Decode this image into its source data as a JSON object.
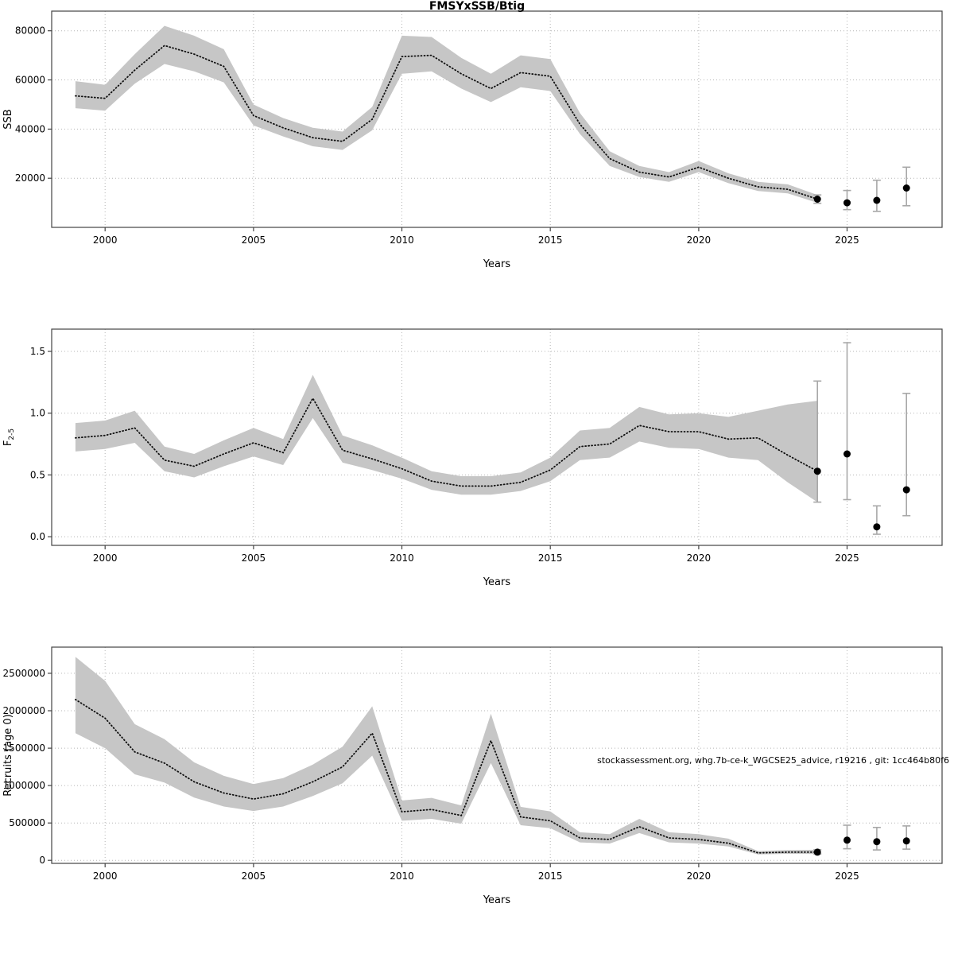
{
  "chart_title": "FMSYxSSB/Btig",
  "annotation": "stockassessment.org, whg.7b-ce-k_WGCSE25_advice, r19216 , git: 1cc464b80f6",
  "chart_data": [
    {
      "type": "line",
      "name": "SSB",
      "title": "FMSYxSSB/Btig",
      "xlabel": "Years",
      "ylabel": "SSB",
      "grid": true,
      "legend_position": "none",
      "xlim": [
        1998.2,
        2028.2
      ],
      "ylim": [
        0,
        88000
      ],
      "xticks": [
        2000,
        2005,
        2010,
        2015,
        2020,
        2025
      ],
      "xtick_labels": [
        "2000",
        "2005",
        "2010",
        "2015",
        "2020",
        "2025"
      ],
      "yticks": [
        20000,
        40000,
        60000,
        80000
      ],
      "ytick_labels": [
        "20000",
        "40000",
        "60000",
        "80000"
      ],
      "x": [
        1999,
        2000,
        2001,
        2002,
        2003,
        2004,
        2005,
        2006,
        2007,
        2008,
        2009,
        2010,
        2011,
        2012,
        2013,
        2014,
        2015,
        2016,
        2017,
        2018,
        2019,
        2020,
        2021,
        2022,
        2023,
        2024
      ],
      "values": [
        53500,
        52500,
        64000,
        74000,
        70500,
        65500,
        45500,
        40500,
        36500,
        35000,
        44000,
        69500,
        70000,
        62500,
        56500,
        63000,
        61500,
        42000,
        28000,
        22500,
        20500,
        24500,
        20000,
        16500,
        15500,
        11500
      ],
      "lower": [
        48500,
        47500,
        58500,
        66500,
        63500,
        59000,
        41500,
        37000,
        33000,
        31500,
        39500,
        62500,
        63500,
        56500,
        51000,
        57000,
        55500,
        38000,
        25000,
        20500,
        18500,
        22500,
        18000,
        14800,
        13800,
        10000
      ],
      "upper": [
        59500,
        58000,
        70500,
        82000,
        78000,
        72500,
        50000,
        44500,
        40500,
        39000,
        49000,
        78000,
        77500,
        69000,
        62500,
        70000,
        68500,
        46500,
        31000,
        25000,
        22500,
        27000,
        22000,
        18500,
        17500,
        13200
      ],
      "forecast": {
        "x": [
          2024,
          2025,
          2026,
          2027
        ],
        "y": [
          11500,
          10000,
          11000,
          16000
        ],
        "lower": [
          9800,
          7200,
          6500,
          8800
        ],
        "upper": [
          13200,
          15000,
          19200,
          24500
        ]
      }
    },
    {
      "type": "line",
      "name": "Fishing mortality",
      "xlabel": "Years",
      "ylabel": "F2-5",
      "ylabel_base": "F",
      "ylabel_subscript": "2-5",
      "grid": true,
      "legend_position": "none",
      "xlim": [
        1998.2,
        2028.2
      ],
      "ylim": [
        -0.07,
        1.68
      ],
      "xticks": [
        2000,
        2005,
        2010,
        2015,
        2020,
        2025
      ],
      "xtick_labels": [
        "2000",
        "2005",
        "2010",
        "2015",
        "2020",
        "2025"
      ],
      "yticks": [
        0,
        0.5,
        1.0,
        1.5
      ],
      "ytick_labels": [
        "0.0",
        "0.5",
        "1.0",
        "1.5"
      ],
      "x": [
        1999,
        2000,
        2001,
        2002,
        2003,
        2004,
        2005,
        2006,
        2007,
        2008,
        2009,
        2010,
        2011,
        2012,
        2013,
        2014,
        2015,
        2016,
        2017,
        2018,
        2019,
        2020,
        2021,
        2022,
        2023,
        2024
      ],
      "values": [
        0.8,
        0.82,
        0.88,
        0.62,
        0.57,
        0.67,
        0.76,
        0.68,
        1.12,
        0.7,
        0.63,
        0.55,
        0.45,
        0.41,
        0.41,
        0.44,
        0.54,
        0.73,
        0.75,
        0.9,
        0.85,
        0.85,
        0.79,
        0.8,
        0.66,
        0.53
      ],
      "lower": [
        0.69,
        0.71,
        0.76,
        0.53,
        0.48,
        0.57,
        0.65,
        0.58,
        0.96,
        0.6,
        0.54,
        0.47,
        0.38,
        0.34,
        0.34,
        0.37,
        0.45,
        0.62,
        0.64,
        0.77,
        0.72,
        0.71,
        0.64,
        0.62,
        0.44,
        0.28
      ],
      "upper": [
        0.92,
        0.94,
        1.02,
        0.73,
        0.67,
        0.78,
        0.88,
        0.79,
        1.31,
        0.82,
        0.74,
        0.64,
        0.53,
        0.49,
        0.49,
        0.52,
        0.64,
        0.86,
        0.88,
        1.05,
        0.99,
        1.0,
        0.97,
        1.02,
        1.07,
        1.1
      ],
      "forecast": {
        "x": [
          2024,
          2025,
          2026,
          2027
        ],
        "y": [
          0.53,
          0.67,
          0.08,
          0.38
        ],
        "lower": [
          0.28,
          0.3,
          0.02,
          0.17
        ],
        "upper": [
          1.26,
          1.57,
          0.25,
          1.16
        ]
      }
    },
    {
      "type": "line",
      "name": "Recruitment",
      "xlabel": "Years",
      "ylabel": "Recruits (age 0)",
      "grid": true,
      "legend_position": "none",
      "xlim": [
        1998.2,
        2028.2
      ],
      "ylim": [
        -40000,
        2850000
      ],
      "xticks": [
        2000,
        2005,
        2010,
        2015,
        2020,
        2025
      ],
      "xtick_labels": [
        "2000",
        "2005",
        "2010",
        "2015",
        "2020",
        "2025"
      ],
      "yticks": [
        0,
        500000,
        1000000,
        1500000,
        2000000,
        2500000
      ],
      "ytick_labels": [
        "0",
        "500000",
        "1000000",
        "1500000",
        "2000000",
        "2500000"
      ],
      "x": [
        1999,
        2000,
        2001,
        2002,
        2003,
        2004,
        2005,
        2006,
        2007,
        2008,
        2009,
        2010,
        2011,
        2012,
        2013,
        2014,
        2015,
        2016,
        2017,
        2018,
        2019,
        2020,
        2021,
        2022,
        2023,
        2024
      ],
      "values": [
        2150000,
        1900000,
        1450000,
        1300000,
        1050000,
        900000,
        820000,
        890000,
        1050000,
        1250000,
        1700000,
        650000,
        680000,
        600000,
        1600000,
        580000,
        530000,
        300000,
        280000,
        450000,
        300000,
        280000,
        230000,
        100000,
        110000,
        110000
      ],
      "lower": [
        1700000,
        1500000,
        1150000,
        1040000,
        840000,
        720000,
        660000,
        720000,
        860000,
        1030000,
        1400000,
        530000,
        555000,
        490000,
        1300000,
        470000,
        430000,
        240000,
        225000,
        365000,
        240000,
        225000,
        185000,
        80000,
        88000,
        85000
      ],
      "upper": [
        2720000,
        2400000,
        1820000,
        1620000,
        1310000,
        1130000,
        1020000,
        1100000,
        1280000,
        1520000,
        2060000,
        800000,
        835000,
        735000,
        1960000,
        715000,
        655000,
        375000,
        350000,
        555000,
        375000,
        350000,
        290000,
        125000,
        138000,
        142000
      ],
      "forecast": {
        "x": [
          2024,
          2025,
          2026,
          2027
        ],
        "y": [
          110000,
          270000,
          250000,
          260000
        ],
        "lower": [
          85000,
          155000,
          140000,
          150000
        ],
        "upper": [
          142000,
          470000,
          440000,
          460000
        ]
      }
    }
  ]
}
